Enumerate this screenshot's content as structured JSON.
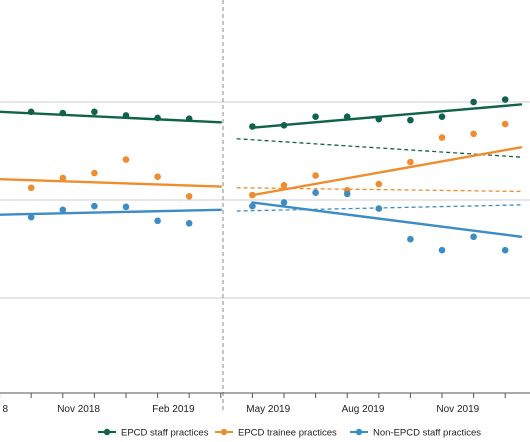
{
  "chart_data": {
    "type": "scatter",
    "title": "",
    "xlabel": "",
    "ylabel": "",
    "x_ticks": [
      "Nov 2018",
      "Feb 2019",
      "May 2019",
      "Aug 2019",
      "Nov 2019"
    ],
    "x_tick_partial_left": "8",
    "intervention_divider": "dashed vertical line between Feb 2019 and May 2019",
    "grid": "horizontal",
    "legend_position": "bottom",
    "colors": {
      "epcd_staff": "#10634a",
      "epcd_trainee": "#ef8c2d",
      "non_epcd": "#3d8cc4"
    },
    "series": [
      {
        "name": "EPCD staff practices",
        "color": "#10634a",
        "pre_points": [
          [
            -0.5,
            3.6
          ],
          [
            0.5,
            3.55
          ],
          [
            1.5,
            3.6
          ],
          [
            2.5,
            3.45
          ],
          [
            3.5,
            3.35
          ],
          [
            4.5,
            3.32
          ]
        ],
        "post_points": [
          [
            6.5,
            3.0
          ],
          [
            7.5,
            3.05
          ],
          [
            8.5,
            3.4
          ],
          [
            9.5,
            3.4
          ],
          [
            10.5,
            3.3
          ],
          [
            11.5,
            3.26
          ],
          [
            12.5,
            3.4
          ],
          [
            13.5,
            4.0
          ],
          [
            14.5,
            4.1
          ]
        ],
        "pre_trend": [
          [
            -1.5,
            3.6
          ],
          [
            5.5,
            3.17
          ]
        ],
        "post_trend": [
          [
            6.5,
            2.95
          ],
          [
            15,
            3.9
          ]
        ],
        "counterfactual": [
          [
            6.0,
            2.5
          ],
          [
            15,
            1.75
          ]
        ]
      },
      {
        "name": "EPCD trainee practices",
        "color": "#ef8c2d",
        "pre_points": [
          [
            -0.5,
            0.5
          ],
          [
            0.5,
            0.9
          ],
          [
            1.5,
            1.1
          ],
          [
            2.5,
            1.65
          ],
          [
            3.5,
            0.95
          ],
          [
            4.5,
            0.15
          ]
        ],
        "post_points": [
          [
            6.5,
            0.2
          ],
          [
            7.5,
            0.6
          ],
          [
            8.5,
            1.0
          ],
          [
            9.5,
            0.4
          ],
          [
            10.5,
            0.65
          ],
          [
            11.5,
            1.55
          ],
          [
            12.5,
            2.55
          ],
          [
            13.5,
            2.7
          ],
          [
            14.5,
            3.1
          ]
        ],
        "pre_trend": [
          [
            -1.5,
            0.85
          ],
          [
            5.5,
            0.55
          ]
        ],
        "post_trend": [
          [
            6.5,
            0.2
          ],
          [
            15,
            2.15
          ]
        ],
        "counterfactual": [
          [
            6.0,
            0.5
          ],
          [
            15,
            0.35
          ]
        ]
      },
      {
        "name": "Non-EPCD staff practices",
        "color": "#3d8cc4",
        "pre_points": [
          [
            -0.5,
            -0.7
          ],
          [
            0.5,
            -0.4
          ],
          [
            1.5,
            -0.25
          ],
          [
            2.5,
            -0.28
          ],
          [
            3.5,
            -0.85
          ],
          [
            4.5,
            -0.95
          ]
        ],
        "post_points": [
          [
            6.5,
            -0.25
          ],
          [
            7.5,
            -0.1
          ],
          [
            8.5,
            0.3
          ],
          [
            9.5,
            0.25
          ],
          [
            10.5,
            -0.35
          ],
          [
            11.5,
            -1.6
          ],
          [
            12.5,
            -2.05
          ],
          [
            13.5,
            -1.5
          ],
          [
            14.5,
            -2.05
          ]
        ],
        "pre_trend": [
          [
            -1.5,
            -0.6
          ],
          [
            5.5,
            -0.4
          ]
        ],
        "post_trend": [
          [
            6.5,
            -0.1
          ],
          [
            15,
            -1.5
          ]
        ],
        "counterfactual": [
          [
            6.0,
            -0.45
          ],
          [
            15,
            -0.2
          ]
        ]
      }
    ]
  },
  "legend": {
    "items": [
      {
        "label": "EPCD staff practices",
        "color": "#10634a"
      },
      {
        "label": "EPCD trainee practices",
        "color": "#ef8c2d"
      },
      {
        "label": "Non-EPCD staff practices",
        "color": "#3d8cc4"
      }
    ]
  }
}
